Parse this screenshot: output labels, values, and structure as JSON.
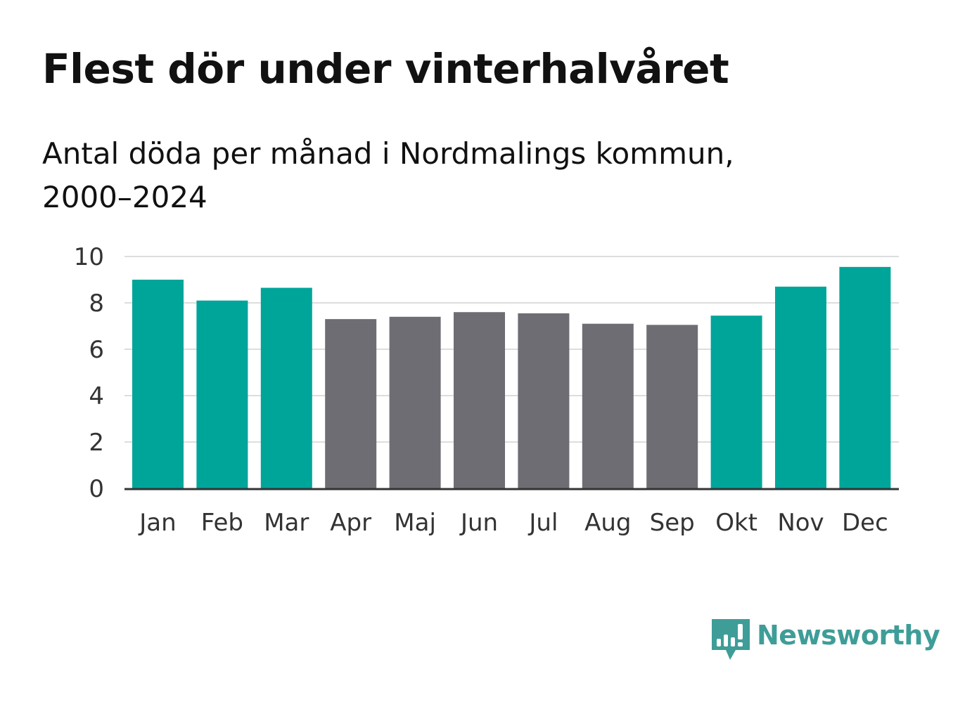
{
  "header": {
    "title": "Flest dör under vinterhalvåret",
    "subtitle_line1": "Antal döda per månad i Nordmalings kommun,",
    "subtitle_line2": "2000–2024"
  },
  "brand": {
    "name": "Newsworthy",
    "icon": "newsworthy-logo-icon",
    "color": "#3f9d98"
  },
  "colors": {
    "winter": "#00a59a",
    "summer": "#6e6d73",
    "grid": "#dddddd",
    "axis": "#333333"
  },
  "chart_data": {
    "type": "bar",
    "title": "Flest dör under vinterhalvåret",
    "subtitle": "Antal döda per månad i Nordmalings kommun, 2000–2024",
    "xlabel": "",
    "ylabel": "",
    "ylim": [
      0,
      10
    ],
    "yticks": [
      0,
      2,
      4,
      6,
      8,
      10
    ],
    "grid": true,
    "categories": [
      "Jan",
      "Feb",
      "Mar",
      "Apr",
      "Maj",
      "Jun",
      "Jul",
      "Aug",
      "Sep",
      "Okt",
      "Nov",
      "Dec"
    ],
    "values": [
      9.0,
      8.1,
      8.65,
      7.3,
      7.4,
      7.6,
      7.55,
      7.1,
      7.05,
      7.45,
      8.7,
      9.55
    ],
    "groups": [
      "winter",
      "winter",
      "winter",
      "summer",
      "summer",
      "summer",
      "summer",
      "summer",
      "summer",
      "winter",
      "winter",
      "winter"
    ]
  }
}
